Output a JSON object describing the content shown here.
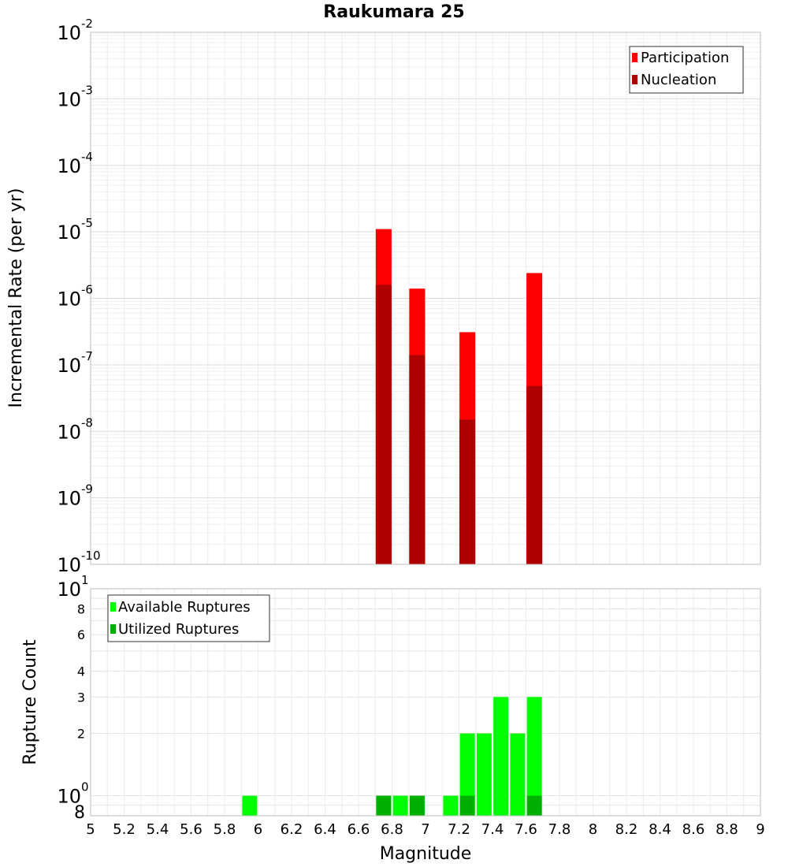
{
  "chart_data": [
    {
      "type": "bar",
      "title": "Raukumara 25",
      "xlabel": "",
      "ylabel": "Incremental Rate (per yr)",
      "yscale": "log",
      "ylim": [
        1e-10,
        0.01
      ],
      "xlim": [
        5,
        9
      ],
      "grid": true,
      "legend_position": "top-right",
      "y_ticks": [
        {
          "base": "10",
          "exp": "-10"
        },
        {
          "base": "10",
          "exp": "-9"
        },
        {
          "base": "10",
          "exp": "-8"
        },
        {
          "base": "10",
          "exp": "-7"
        },
        {
          "base": "10",
          "exp": "-6"
        },
        {
          "base": "10",
          "exp": "-5"
        },
        {
          "base": "10",
          "exp": "-4"
        },
        {
          "base": "10",
          "exp": "-3"
        },
        {
          "base": "10",
          "exp": "-2"
        }
      ],
      "series": [
        {
          "name": "Participation",
          "color": "#ff0000",
          "x": [
            6.75,
            6.95,
            7.25,
            7.65
          ],
          "values": [
            1.1e-05,
            1.4e-06,
            3.1e-07,
            2.4e-06
          ]
        },
        {
          "name": "Nucleation",
          "color": "#b00000",
          "x": [
            6.75,
            6.95,
            7.25,
            7.65
          ],
          "values": [
            1.6e-06,
            1.4e-07,
            1.5e-08,
            4.8e-08
          ]
        }
      ]
    },
    {
      "type": "bar",
      "title": "",
      "xlabel": "Magnitude",
      "ylabel": "Rupture Count",
      "yscale": "log",
      "ylim": [
        0.8,
        10
      ],
      "xlim": [
        5,
        9
      ],
      "grid": true,
      "legend_position": "top-left",
      "x_ticks": [
        "5",
        "5.2",
        "5.4",
        "5.6",
        "5.8",
        "6",
        "6.2",
        "6.4",
        "6.6",
        "6.8",
        "7",
        "7.2",
        "7.4",
        "7.6",
        "7.8",
        "8",
        "8.2",
        "8.4",
        "8.6",
        "8.8",
        "9"
      ],
      "y_ticks": [
        {
          "base": "8",
          "exp": ""
        },
        {
          "base": "10",
          "exp": "0"
        },
        {
          "base": "2",
          "exp": ""
        },
        {
          "base": "3",
          "exp": ""
        },
        {
          "base": "4",
          "exp": ""
        },
        {
          "base": "6",
          "exp": ""
        },
        {
          "base": "8",
          "exp": ""
        },
        {
          "base": "10",
          "exp": "1"
        }
      ],
      "series": [
        {
          "name": "Available Ruptures",
          "color": "#00ff00",
          "x": [
            5.95,
            6.75,
            6.85,
            6.95,
            7.15,
            7.25,
            7.35,
            7.45,
            7.55,
            7.65
          ],
          "values": [
            1,
            1,
            1,
            1,
            1,
            2,
            2,
            3,
            2,
            3
          ]
        },
        {
          "name": "Utilized Ruptures",
          "color": "#00b000",
          "x": [
            6.75,
            6.95,
            7.25,
            7.65
          ],
          "values": [
            1,
            1,
            1,
            1
          ]
        }
      ]
    }
  ]
}
